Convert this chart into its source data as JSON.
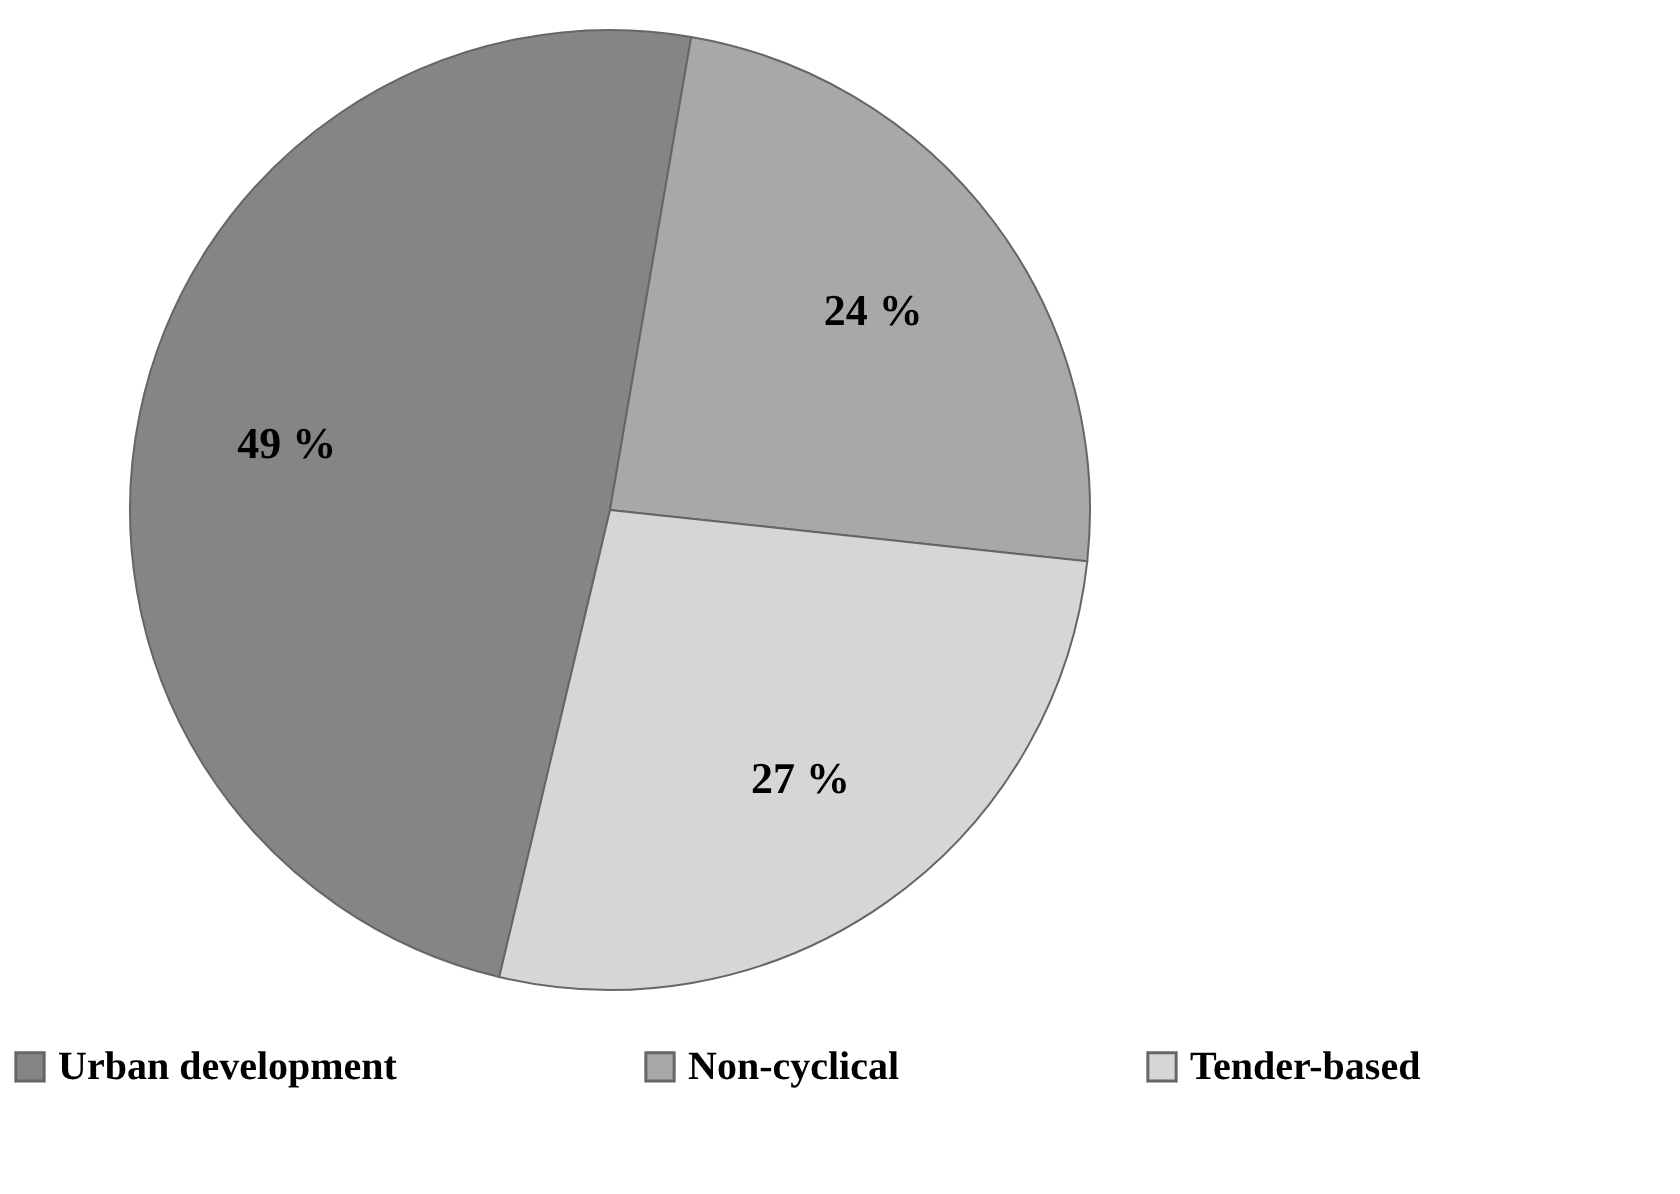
{
  "chart_data": {
    "type": "pie",
    "categories": [
      "Urban development",
      "Non-cyclical",
      "Tender-based"
    ],
    "values": [
      49,
      24,
      27
    ],
    "colors": [
      "#858585",
      "#a8a8a8",
      "#d6d6d6"
    ],
    "value_labels": [
      "49 %",
      "24 %",
      "27 %"
    ],
    "legend": "bottom"
  }
}
